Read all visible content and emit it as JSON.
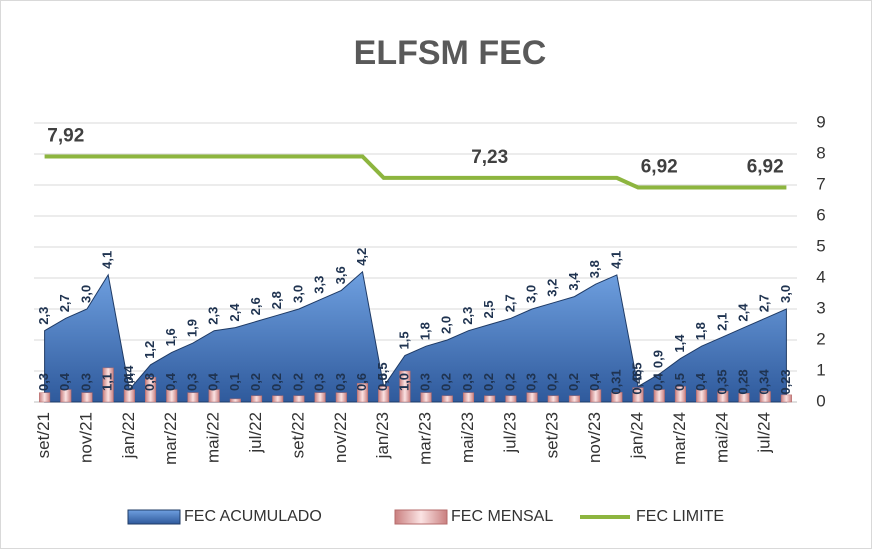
{
  "chart_data": {
    "type": "combo",
    "title": "ELFSM FEC",
    "categories": [
      "set/21",
      null,
      "nov/21",
      null,
      "jan/22",
      null,
      "mar/22",
      null,
      "mai/22",
      null,
      "jul/22",
      null,
      "set/22",
      null,
      "nov/22",
      null,
      "jan/23",
      null,
      "mar/23",
      null,
      "mai/23",
      null,
      "jul/23",
      null,
      "set/23",
      null,
      "nov/23",
      null,
      "jan/24",
      null,
      "mar/24",
      null,
      "mai/24",
      null,
      "jul/24",
      null
    ],
    "series": [
      {
        "name": "FEC ACUMULADO",
        "kind": "area",
        "color": "#3f6fb4",
        "values": [
          2.3,
          2.7,
          3.0,
          4.1,
          0.4,
          1.2,
          1.6,
          1.9,
          2.3,
          2.4,
          2.6,
          2.8,
          3.0,
          3.3,
          3.6,
          4.2,
          0.5,
          1.5,
          1.8,
          2.0,
          2.3,
          2.5,
          2.7,
          3.0,
          3.2,
          3.4,
          3.8,
          4.1,
          0.5,
          0.9,
          1.4,
          1.8,
          2.1,
          2.4,
          2.7,
          3.0
        ],
        "value_labels": [
          "2,3",
          "2,7",
          "3,0",
          "4,1",
          "0,4",
          "1,2",
          "1,6",
          "1,9",
          "2,3",
          "2,4",
          "2,6",
          "2,8",
          "3,0",
          "3,3",
          "3,6",
          "4,2",
          "0,5",
          "1,5",
          "1,8",
          "2,0",
          "2,3",
          "2,5",
          "2,7",
          "3,0",
          "3,2",
          "3,4",
          "3,8",
          "4,1",
          "0,5",
          "0,9",
          "1,4",
          "1,8",
          "2,1",
          "2,4",
          "2,7",
          "3,0"
        ]
      },
      {
        "name": "FEC MENSAL",
        "kind": "bar",
        "color": "#e8a8a8",
        "values": [
          0.3,
          0.4,
          0.3,
          1.1,
          0.4,
          0.8,
          0.4,
          0.3,
          0.4,
          0.1,
          0.2,
          0.2,
          0.2,
          0.3,
          0.3,
          0.6,
          0.5,
          1.0,
          0.3,
          0.2,
          0.3,
          0.2,
          0.2,
          0.3,
          0.2,
          0.2,
          0.4,
          0.31,
          0.46,
          0.4,
          0.5,
          0.4,
          0.35,
          0.28,
          0.34,
          0.23
        ],
        "value_labels": [
          "0,3",
          "0,4",
          "0,3",
          "1,1",
          "0,4",
          "0,8",
          "0,4",
          "0,3",
          "0,4",
          "0,1",
          "0,2",
          "0,2",
          "0,2",
          "0,3",
          "0,3",
          "0,6",
          "0,5",
          "1,0",
          "0,3",
          "0,2",
          "0,3",
          "0,2",
          "0,2",
          "0,3",
          "0,2",
          "0,2",
          "0,4",
          "0,31",
          "0,46",
          "0,4",
          "0,5",
          "0,4",
          "0,35",
          "0,28",
          "0,34",
          "0,23"
        ]
      },
      {
        "name": "FEC LIMITE",
        "kind": "line",
        "color": "#8db53f",
        "values": [
          7.92,
          7.92,
          7.92,
          7.92,
          7.92,
          7.92,
          7.92,
          7.92,
          7.92,
          7.92,
          7.92,
          7.92,
          7.92,
          7.92,
          7.92,
          7.92,
          7.23,
          7.23,
          7.23,
          7.23,
          7.23,
          7.23,
          7.23,
          7.23,
          7.23,
          7.23,
          7.23,
          7.23,
          6.92,
          6.92,
          6.92,
          6.92,
          6.92,
          6.92,
          6.92,
          6.92
        ],
        "value_labels": [
          null,
          "7,92",
          null,
          null,
          null,
          null,
          null,
          null,
          null,
          null,
          null,
          null,
          null,
          null,
          null,
          null,
          null,
          null,
          null,
          null,
          null,
          "7,23",
          null,
          null,
          null,
          null,
          null,
          null,
          null,
          "6,92",
          null,
          null,
          null,
          null,
          "6,92",
          null
        ]
      }
    ],
    "ylim": [
      0,
      9
    ],
    "yticks": [
      0,
      1,
      2,
      3,
      4,
      5,
      6,
      7,
      8,
      9
    ],
    "grid": true,
    "legend": "bottom"
  }
}
